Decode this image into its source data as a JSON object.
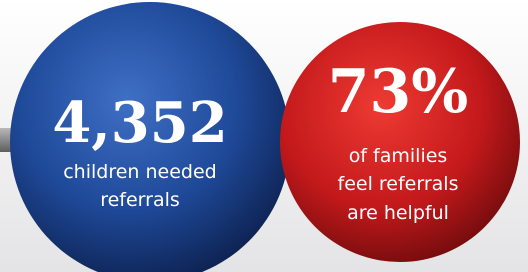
{
  "stats": [
    {
      "value": "4,352",
      "label_lines": [
        "children needed",
        "referrals"
      ]
    },
    {
      "value": "73%",
      "label_lines": [
        "of families",
        "feel referrals",
        "are helpful"
      ]
    }
  ]
}
